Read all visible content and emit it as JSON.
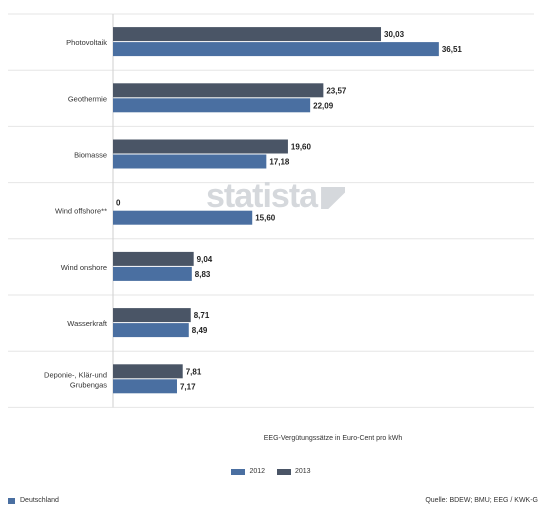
{
  "chart_data": {
    "type": "bar",
    "orientation": "horizontal",
    "categories": [
      [
        "Photovoltaik"
      ],
      [
        "Geothermie"
      ],
      [
        "Biomasse"
      ],
      [
        "Wind offshore**"
      ],
      [
        "Wind onshore"
      ],
      [
        "Wasserkraft"
      ],
      [
        "Deponie-, Klär-und",
        "Grubengas"
      ]
    ],
    "series": [
      {
        "name": "2013",
        "color": "#4a5566",
        "values": [
          30.03,
          23.57,
          19.6,
          0,
          9.04,
          8.71,
          7.81
        ],
        "labels": [
          "30,03",
          "23,57",
          "19,60",
          "0",
          "9,04",
          "8,71",
          "7,81"
        ]
      },
      {
        "name": "2012",
        "color": "#4a6fa1",
        "values": [
          36.51,
          22.09,
          17.18,
          15.6,
          8.83,
          8.49,
          7.17
        ],
        "labels": [
          "36,51",
          "22,09",
          "17,18",
          "15,60",
          "8,83",
          "8,49",
          "7,17"
        ]
      }
    ],
    "xlabel": "EEG-Vergütungssätze in Euro-Cent pro kWh",
    "xlim": [
      0,
      40
    ],
    "grid": true
  },
  "watermark": "statista",
  "legend": [
    {
      "label": "2012",
      "color": "#4a6fa1"
    },
    {
      "label": "2013",
      "color": "#4a5566"
    }
  ],
  "footer": {
    "region": "Deutschland",
    "source": "Quelle: BDEW; BMU; EEG / KWK-G"
  }
}
